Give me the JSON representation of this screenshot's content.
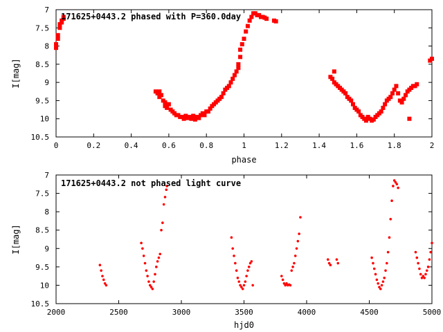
{
  "chart_data": [
    {
      "type": "scatter",
      "title": "171625+0443.2 phased with P=360.0day",
      "xlabel": "phase",
      "ylabel": "I[mag]",
      "xlim": [
        0,
        2
      ],
      "ylim": [
        10.5,
        7
      ],
      "y_inverted": true,
      "x_ticks": [
        "0",
        "0.2",
        "0.4",
        "0.6",
        "0.8",
        "1",
        "1.2",
        "1.4",
        "1.6",
        "1.8",
        "2"
      ],
      "y_ticks": [
        "7",
        "7.5",
        "8",
        "8.5",
        "9",
        "9.5",
        "10",
        "10.5"
      ],
      "marker_color": "#ff0000",
      "marker": "filled-square",
      "series": [
        {
          "points": [
            [
              0.0,
              8.05
            ],
            [
              0.0,
              7.95
            ],
            [
              0.01,
              7.8
            ],
            [
              0.01,
              7.7
            ],
            [
              0.02,
              7.5
            ],
            [
              0.02,
              7.4
            ],
            [
              0.03,
              7.35
            ],
            [
              0.03,
              7.3
            ],
            [
              0.04,
              7.25
            ],
            [
              0.04,
              7.2
            ],
            [
              0.53,
              9.25
            ],
            [
              0.54,
              9.3
            ],
            [
              0.55,
              9.25
            ],
            [
              0.55,
              9.4
            ],
            [
              0.56,
              9.35
            ],
            [
              0.57,
              9.5
            ],
            [
              0.58,
              9.55
            ],
            [
              0.58,
              9.65
            ],
            [
              0.59,
              9.7
            ],
            [
              0.6,
              9.6
            ],
            [
              0.61,
              9.75
            ],
            [
              0.62,
              9.8
            ],
            [
              0.63,
              9.85
            ],
            [
              0.64,
              9.9
            ],
            [
              0.65,
              9.9
            ],
            [
              0.66,
              9.95
            ],
            [
              0.67,
              9.95
            ],
            [
              0.68,
              10.0
            ],
            [
              0.69,
              9.92
            ],
            [
              0.7,
              9.98
            ],
            [
              0.71,
              9.95
            ],
            [
              0.72,
              10.0
            ],
            [
              0.73,
              9.92
            ],
            [
              0.74,
              10.02
            ],
            [
              0.75,
              9.95
            ],
            [
              0.76,
              9.98
            ],
            [
              0.77,
              9.9
            ],
            [
              0.78,
              9.85
            ],
            [
              0.79,
              9.9
            ],
            [
              0.8,
              9.8
            ],
            [
              0.81,
              9.8
            ],
            [
              0.82,
              9.72
            ],
            [
              0.83,
              9.65
            ],
            [
              0.84,
              9.6
            ],
            [
              0.85,
              9.55
            ],
            [
              0.86,
              9.5
            ],
            [
              0.87,
              9.45
            ],
            [
              0.88,
              9.4
            ],
            [
              0.89,
              9.3
            ],
            [
              0.9,
              9.2
            ],
            [
              0.91,
              9.15
            ],
            [
              0.92,
              9.1
            ],
            [
              0.93,
              9.0
            ],
            [
              0.94,
              8.9
            ],
            [
              0.95,
              8.8
            ],
            [
              0.96,
              8.7
            ],
            [
              0.97,
              8.6
            ],
            [
              0.97,
              8.5
            ],
            [
              0.98,
              8.3
            ],
            [
              0.98,
              8.1
            ],
            [
              0.99,
              7.95
            ],
            [
              1.0,
              7.8
            ],
            [
              1.01,
              7.6
            ],
            [
              1.02,
              7.45
            ],
            [
              1.03,
              7.3
            ],
            [
              1.04,
              7.2
            ],
            [
              1.05,
              7.1
            ],
            [
              1.06,
              7.1
            ],
            [
              1.07,
              7.15
            ],
            [
              1.08,
              7.15
            ],
            [
              1.09,
              7.2
            ],
            [
              1.1,
              7.2
            ],
            [
              1.11,
              7.22
            ],
            [
              1.12,
              7.25
            ],
            [
              1.16,
              7.3
            ],
            [
              1.17,
              7.32
            ],
            [
              1.46,
              8.85
            ],
            [
              1.47,
              8.9
            ],
            [
              1.48,
              8.7
            ],
            [
              1.48,
              9.0
            ],
            [
              1.49,
              9.05
            ],
            [
              1.5,
              9.1
            ],
            [
              1.51,
              9.15
            ],
            [
              1.52,
              9.2
            ],
            [
              1.53,
              9.25
            ],
            [
              1.54,
              9.3
            ],
            [
              1.55,
              9.4
            ],
            [
              1.56,
              9.45
            ],
            [
              1.57,
              9.5
            ],
            [
              1.58,
              9.6
            ],
            [
              1.59,
              9.7
            ],
            [
              1.6,
              9.75
            ],
            [
              1.61,
              9.8
            ],
            [
              1.62,
              9.9
            ],
            [
              1.63,
              9.95
            ],
            [
              1.64,
              10.0
            ],
            [
              1.65,
              10.05
            ],
            [
              1.66,
              9.95
            ],
            [
              1.67,
              10.0
            ],
            [
              1.68,
              10.05
            ],
            [
              1.69,
              10.02
            ],
            [
              1.7,
              9.95
            ],
            [
              1.71,
              9.9
            ],
            [
              1.72,
              9.85
            ],
            [
              1.73,
              9.8
            ],
            [
              1.74,
              9.7
            ],
            [
              1.75,
              9.6
            ],
            [
              1.76,
              9.5
            ],
            [
              1.77,
              9.45
            ],
            [
              1.78,
              9.4
            ],
            [
              1.79,
              9.3
            ],
            [
              1.8,
              9.2
            ],
            [
              1.81,
              9.1
            ],
            [
              1.82,
              9.3
            ],
            [
              1.83,
              9.5
            ],
            [
              1.84,
              9.55
            ],
            [
              1.85,
              9.45
            ],
            [
              1.86,
              9.35
            ],
            [
              1.87,
              9.25
            ],
            [
              1.88,
              9.2
            ],
            [
              1.89,
              9.15
            ],
            [
              1.9,
              9.1
            ],
            [
              1.91,
              9.1
            ],
            [
              1.92,
              9.05
            ],
            [
              1.88,
              10.0
            ],
            [
              1.99,
              8.4
            ],
            [
              2.0,
              8.35
            ]
          ]
        }
      ]
    },
    {
      "type": "scatter",
      "title": "171625+0443.2 not phased light curve",
      "xlabel": "hjd0",
      "ylabel": "I[mag]",
      "xlim": [
        2000,
        5000
      ],
      "ylim": [
        10.5,
        7
      ],
      "y_inverted": true,
      "x_ticks": [
        "2000",
        "2500",
        "3000",
        "3500",
        "4000",
        "4500",
        "5000"
      ],
      "y_ticks": [
        "7",
        "7.5",
        "8",
        "8.5",
        "9",
        "9.5",
        "10",
        "10.5"
      ],
      "marker_color": "#ff0000",
      "marker": "small-dot",
      "series": [
        {
          "points": [
            [
              2350,
              9.45
            ],
            [
              2360,
              9.6
            ],
            [
              2370,
              9.75
            ],
            [
              2380,
              9.85
            ],
            [
              2390,
              9.95
            ],
            [
              2400,
              10.0
            ],
            [
              2680,
              8.85
            ],
            [
              2690,
              9.0
            ],
            [
              2700,
              9.2
            ],
            [
              2710,
              9.4
            ],
            [
              2720,
              9.6
            ],
            [
              2730,
              9.75
            ],
            [
              2740,
              9.9
            ],
            [
              2750,
              10.0
            ],
            [
              2760,
              10.05
            ],
            [
              2770,
              10.1
            ],
            [
              2780,
              9.9
            ],
            [
              2790,
              9.7
            ],
            [
              2800,
              9.5
            ],
            [
              2810,
              9.35
            ],
            [
              2820,
              9.25
            ],
            [
              2830,
              9.15
            ],
            [
              2840,
              8.5
            ],
            [
              2850,
              8.3
            ],
            [
              2860,
              7.8
            ],
            [
              2870,
              7.6
            ],
            [
              2880,
              7.4
            ],
            [
              2885,
              7.3
            ],
            [
              3400,
              8.7
            ],
            [
              3410,
              9.0
            ],
            [
              3420,
              9.2
            ],
            [
              3430,
              9.4
            ],
            [
              3440,
              9.6
            ],
            [
              3450,
              9.8
            ],
            [
              3460,
              9.9
            ],
            [
              3470,
              10.0
            ],
            [
              3480,
              10.05
            ],
            [
              3490,
              10.1
            ],
            [
              3500,
              10.0
            ],
            [
              3510,
              9.9
            ],
            [
              3520,
              9.75
            ],
            [
              3530,
              9.6
            ],
            [
              3540,
              9.5
            ],
            [
              3550,
              9.4
            ],
            [
              3560,
              9.35
            ],
            [
              3570,
              10.0
            ],
            [
              3800,
              9.75
            ],
            [
              3810,
              9.85
            ],
            [
              3820,
              9.95
            ],
            [
              3830,
              10.0
            ],
            [
              3840,
              9.95
            ],
            [
              3850,
              10.0
            ],
            [
              3860,
              9.98
            ],
            [
              3870,
              10.0
            ],
            [
              3880,
              9.6
            ],
            [
              3890,
              9.5
            ],
            [
              3900,
              9.4
            ],
            [
              3910,
              9.2
            ],
            [
              3920,
              9.0
            ],
            [
              3930,
              8.8
            ],
            [
              3940,
              8.6
            ],
            [
              3950,
              8.15
            ],
            [
              4170,
              9.3
            ],
            [
              4180,
              9.4
            ],
            [
              4190,
              9.45
            ],
            [
              4240,
              9.3
            ],
            [
              4250,
              9.4
            ],
            [
              4520,
              9.25
            ],
            [
              4530,
              9.4
            ],
            [
              4540,
              9.55
            ],
            [
              4550,
              9.7
            ],
            [
              4560,
              9.85
            ],
            [
              4570,
              9.95
            ],
            [
              4580,
              10.05
            ],
            [
              4590,
              10.1
            ],
            [
              4600,
              10.0
            ],
            [
              4610,
              9.9
            ],
            [
              4620,
              9.8
            ],
            [
              4630,
              9.6
            ],
            [
              4640,
              9.4
            ],
            [
              4650,
              9.1
            ],
            [
              4660,
              8.7
            ],
            [
              4670,
              8.2
            ],
            [
              4680,
              7.7
            ],
            [
              4690,
              7.3
            ],
            [
              4700,
              7.15
            ],
            [
              4710,
              7.2
            ],
            [
              4720,
              7.25
            ],
            [
              4730,
              7.35
            ],
            [
              4870,
              9.1
            ],
            [
              4880,
              9.25
            ],
            [
              4890,
              9.4
            ],
            [
              4900,
              9.55
            ],
            [
              4910,
              9.7
            ],
            [
              4920,
              9.8
            ],
            [
              4930,
              9.75
            ],
            [
              4940,
              9.8
            ],
            [
              4950,
              9.7
            ],
            [
              4960,
              9.6
            ],
            [
              4970,
              9.5
            ],
            [
              4980,
              9.3
            ],
            [
              4990,
              9.1
            ],
            [
              5000,
              8.85
            ]
          ]
        }
      ]
    }
  ]
}
